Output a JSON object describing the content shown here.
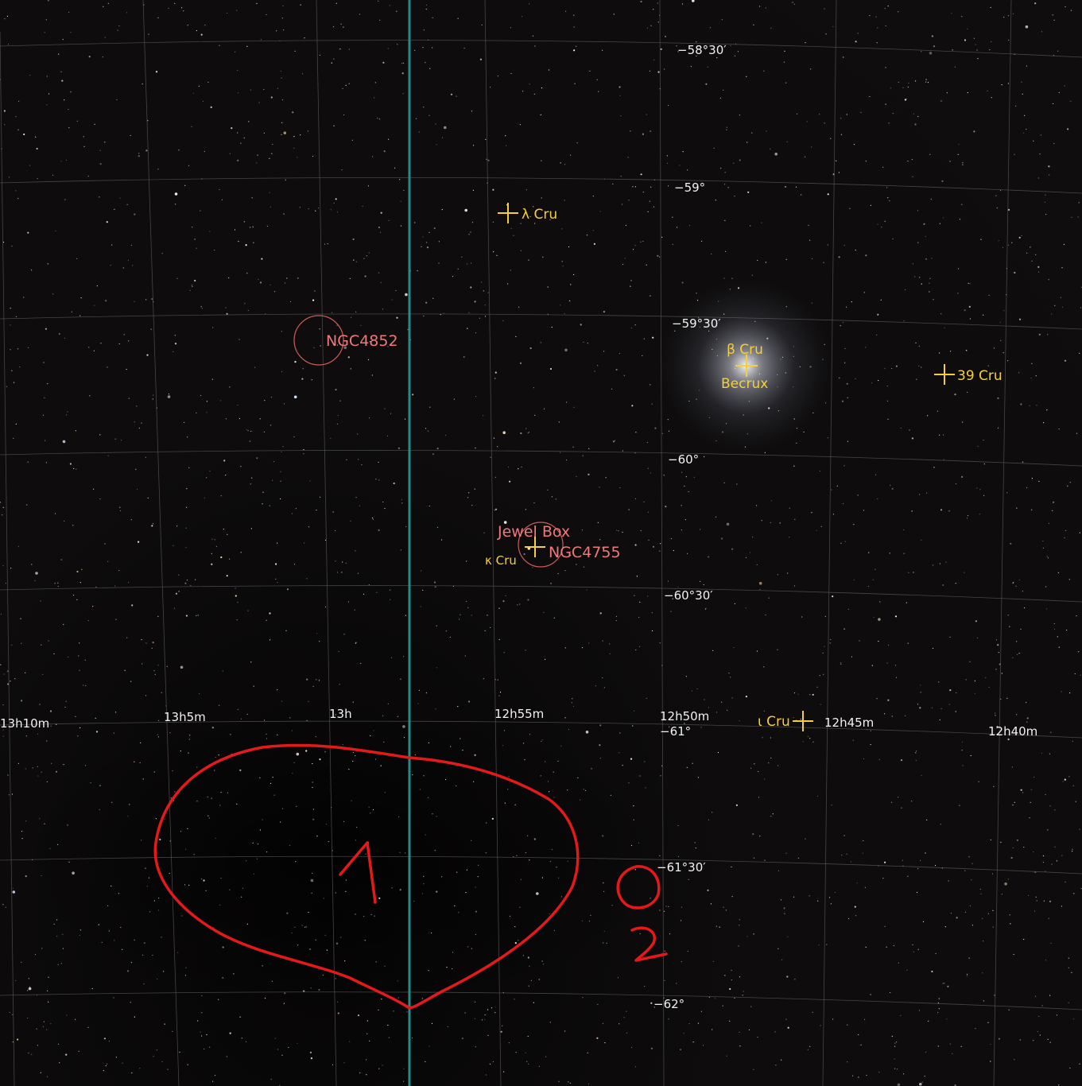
{
  "colors": {
    "star_label": "#f5cf3a",
    "dso_label": "#f07878",
    "grid_label": "#f2f2f2",
    "annotation": "#e41a1a",
    "meridian": "#2a8a8a"
  },
  "declination_labels": [
    "−58°30′",
    "−59°",
    "−59°30′",
    "−60°",
    "−60°30′",
    "−61°",
    "−61°30′",
    "−62°"
  ],
  "ra_labels": [
    "13h10m",
    "13h5m",
    "13h",
    "12h55m",
    "12h50m",
    "12h45m",
    "12h40m"
  ],
  "stars": [
    {
      "name": "λ Cru",
      "icon": "crosshair-icon"
    },
    {
      "name": "β Cru",
      "alt_name": "Becrux",
      "icon": "crosshair-icon"
    },
    {
      "name": "39 Cru",
      "icon": "crosshair-icon"
    },
    {
      "name": "κ Cru",
      "icon": "crosshair-icon"
    },
    {
      "name": "ι Cru",
      "icon": "crosshair-icon"
    }
  ],
  "deep_sky": [
    {
      "name": "NGC4852",
      "icon": "circle-icon"
    },
    {
      "name": "Jewel Box",
      "catalog": "NGC4755",
      "icon": "circle-icon"
    }
  ],
  "annotations": {
    "region_1": "1",
    "region_2": "2"
  }
}
